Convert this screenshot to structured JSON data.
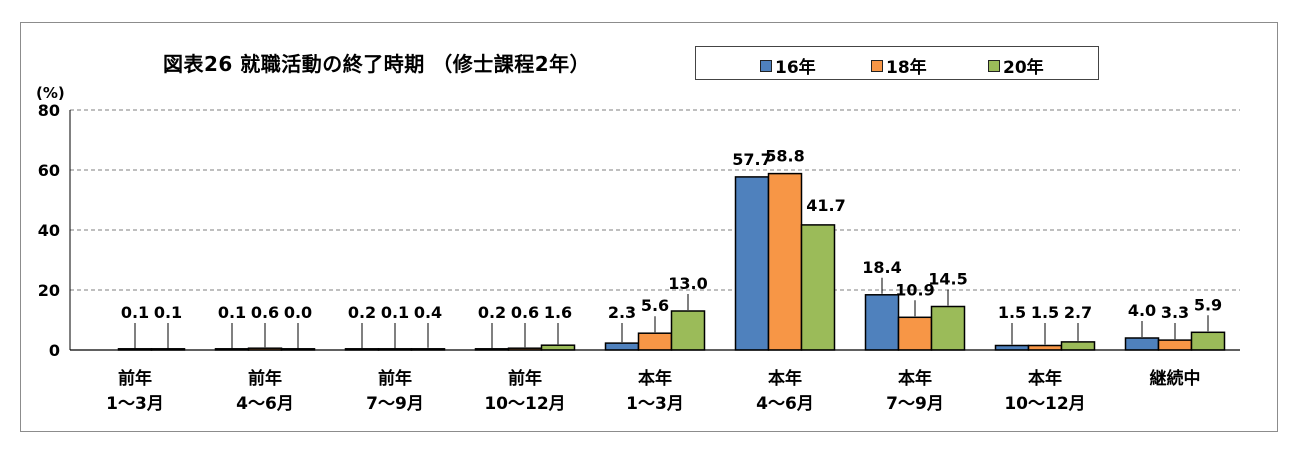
{
  "chart_data": {
    "type": "bar",
    "title": "図表26 就職活動の終了時期 （修士課程2年）",
    "ylabel": "(%)",
    "ylim": [
      0,
      80
    ],
    "yticks": [
      0,
      20,
      40,
      60,
      80
    ],
    "grid": true,
    "legend_position": "top-right",
    "categories": [
      [
        "前年",
        "1～3月"
      ],
      [
        "前年",
        "4～6月"
      ],
      [
        "前年",
        "7～9月"
      ],
      [
        "前年",
        "10～12月"
      ],
      [
        "本年",
        "1～3月"
      ],
      [
        "本年",
        "4～6月"
      ],
      [
        "本年",
        "7～9月"
      ],
      [
        "本年",
        "10～12月"
      ],
      [
        "継続中"
      ]
    ],
    "series": [
      {
        "name": "16年",
        "color": "#4f81bd",
        "values": [
          null,
          0.1,
          0.2,
          0.2,
          2.3,
          57.7,
          18.4,
          1.5,
          4.0
        ],
        "labels": [
          "",
          "0.1",
          "0.2",
          "0.2",
          "2.3",
          "57.7",
          "18.4",
          "1.5",
          "4.0"
        ]
      },
      {
        "name": "18年",
        "color": "#f79646",
        "values": [
          0.1,
          0.6,
          0.1,
          0.6,
          5.6,
          58.8,
          10.9,
          1.5,
          3.3
        ],
        "labels": [
          "0.1",
          "0.6",
          "0.1",
          "0.6",
          "5.6",
          "58.8",
          "10.9",
          "1.5",
          "3.3"
        ]
      },
      {
        "name": "20年",
        "color": "#9bbb59",
        "values": [
          0.1,
          0.0,
          0.4,
          1.6,
          13.0,
          41.7,
          14.5,
          2.7,
          5.9
        ],
        "labels": [
          "0.1",
          "0.0",
          "0.4",
          "1.6",
          "13.0",
          "41.7",
          "14.5",
          "2.7",
          "5.9"
        ]
      }
    ]
  }
}
